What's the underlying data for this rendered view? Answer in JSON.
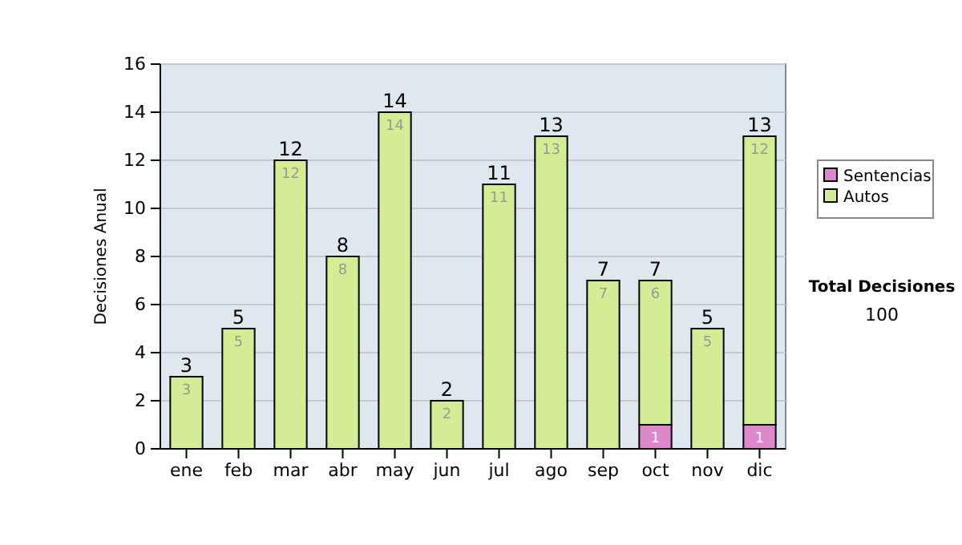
{
  "chart_data": {
    "type": "bar",
    "stacked": true,
    "ylabel": "Decisiones Anual",
    "categories": [
      "ene",
      "feb",
      "mar",
      "abr",
      "may",
      "jun",
      "jul",
      "ago",
      "sep",
      "oct",
      "nov",
      "dic"
    ],
    "series": [
      {
        "name": "Sentencias",
        "color": "#dd88cc",
        "values": [
          0,
          0,
          0,
          0,
          0,
          0,
          0,
          0,
          0,
          1,
          0,
          1
        ],
        "value_labels": [
          null,
          null,
          null,
          null,
          null,
          null,
          null,
          null,
          null,
          "1",
          null,
          "1"
        ]
      },
      {
        "name": "Autos",
        "color": "#d4ec94",
        "values": [
          3,
          5,
          12,
          8,
          14,
          2,
          11,
          13,
          7,
          6,
          5,
          12
        ],
        "value_labels": [
          "3",
          "5",
          "12",
          "8",
          "14",
          "2",
          "11",
          "13",
          "7",
          "6",
          "5",
          "12"
        ]
      }
    ],
    "totals": [
      "3",
      "5",
      "12",
      "8",
      "14",
      "2",
      "11",
      "13",
      "7",
      "7",
      "5",
      "13"
    ],
    "ylim": [
      0,
      16
    ],
    "yticks": [
      0,
      2,
      4,
      6,
      8,
      10,
      12,
      14,
      16
    ],
    "grid": "y",
    "legend": "right",
    "annotations": [
      "Total Decisiones",
      "100"
    ]
  }
}
